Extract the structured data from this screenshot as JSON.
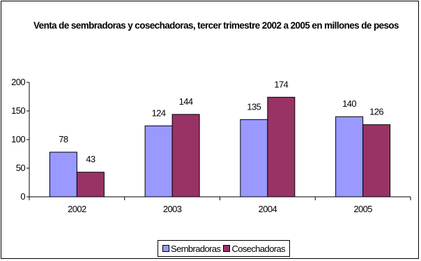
{
  "chart_data": {
    "type": "bar",
    "title": "Venta de sembradoras y cosechadoras, tercer trimestre 2002 a 2005 en millones de pesos",
    "categories": [
      "2002",
      "2003",
      "2004",
      "2005"
    ],
    "series": [
      {
        "name": "Sembradoras",
        "values": [
          78,
          124,
          135,
          140
        ],
        "color": "#9999ff"
      },
      {
        "name": "Cosechadoras",
        "values": [
          43,
          144,
          174,
          126
        ],
        "color": "#993366"
      }
    ],
    "yticks": [
      "0",
      "50",
      "100",
      "150",
      "200"
    ],
    "ylim": [
      0,
      200
    ],
    "xlabel": "",
    "ylabel": "",
    "grid": false,
    "legend": "bottom"
  }
}
